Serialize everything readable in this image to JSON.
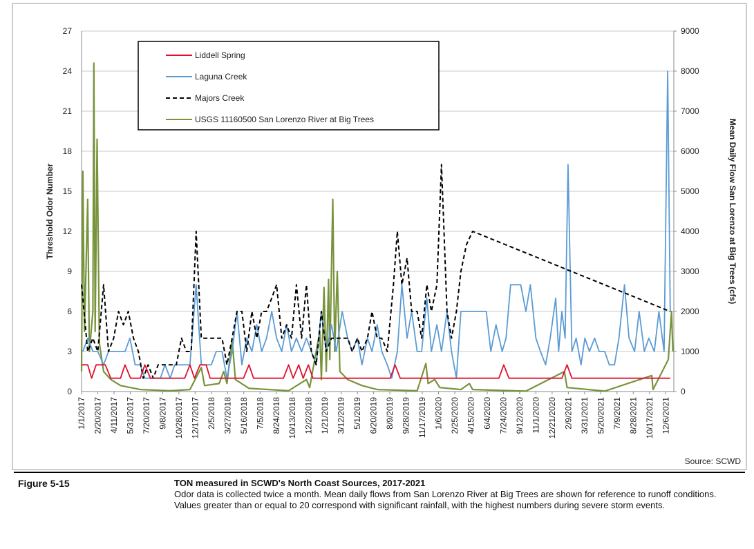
{
  "chart_data": {
    "type": "line",
    "source": "Source:  SCWD",
    "y_label": "Threshold Odor Number",
    "y2_label": "Mean Daily Flow San Lorenzo at Big Trees (cfs)",
    "xlim": [
      "2017-01-01",
      "2021-12-31"
    ],
    "xticks": [
      {
        "value": "2017-01-01",
        "label": "1/1/2017"
      },
      {
        "value": "2017-02-20",
        "label": "2/20/2017"
      },
      {
        "value": "2017-04-11",
        "label": "4/11/2017"
      },
      {
        "value": "2017-05-31",
        "label": "5/31/2017"
      },
      {
        "value": "2017-07-20",
        "label": "7/20/2017"
      },
      {
        "value": "2017-09-08",
        "label": "9/8/2017"
      },
      {
        "value": "2017-10-28",
        "label": "10/28/2017"
      },
      {
        "value": "2017-12-17",
        "label": "12/17/2017"
      },
      {
        "value": "2018-02-05",
        "label": "2/5/2018"
      },
      {
        "value": "2018-03-27",
        "label": "3/27/2018"
      },
      {
        "value": "2018-05-16",
        "label": "5/16/2018"
      },
      {
        "value": "2018-07-05",
        "label": "7/5/2018"
      },
      {
        "value": "2018-08-24",
        "label": "8/24/2018"
      },
      {
        "value": "2018-10-13",
        "label": "10/13/2018"
      },
      {
        "value": "2018-12-02",
        "label": "12/2/2018"
      },
      {
        "value": "2019-01-21",
        "label": "1/21/2019"
      },
      {
        "value": "2019-03-12",
        "label": "3/12/2019"
      },
      {
        "value": "2019-05-01",
        "label": "5/1/2019"
      },
      {
        "value": "2019-06-20",
        "label": "6/20/2019"
      },
      {
        "value": "2019-08-09",
        "label": "8/9/2019"
      },
      {
        "value": "2019-09-28",
        "label": "9/28/2019"
      },
      {
        "value": "2019-11-17",
        "label": "11/17/2019"
      },
      {
        "value": "2020-01-06",
        "label": "1/6/2020"
      },
      {
        "value": "2020-02-25",
        "label": "2/25/2020"
      },
      {
        "value": "2020-04-15",
        "label": "4/15/2020"
      },
      {
        "value": "2020-06-04",
        "label": "6/4/2020"
      },
      {
        "value": "2020-07-24",
        "label": "7/24/2020"
      },
      {
        "value": "2020-09-12",
        "label": "9/12/2020"
      },
      {
        "value": "2020-11-01",
        "label": "11/1/2020"
      },
      {
        "value": "2020-12-21",
        "label": "12/21/2020"
      },
      {
        "value": "2021-02-09",
        "label": "2/9/2021"
      },
      {
        "value": "2021-03-31",
        "label": "3/31/2021"
      },
      {
        "value": "2021-05-20",
        "label": "5/20/2021"
      },
      {
        "value": "2021-07-09",
        "label": "7/9/2021"
      },
      {
        "value": "2021-08-28",
        "label": "8/28/2021"
      },
      {
        "value": "2021-10-17",
        "label": "10/17/2021"
      },
      {
        "value": "2021-12-06",
        "label": "12/6/2021"
      }
    ],
    "ylim": [
      0,
      27
    ],
    "yticks": [
      0,
      3,
      6,
      9,
      12,
      15,
      18,
      21,
      24,
      27
    ],
    "y2lim": [
      0,
      9000
    ],
    "y2ticks": [
      0,
      1000,
      2000,
      3000,
      4000,
      5000,
      6000,
      7000,
      8000,
      9000
    ],
    "grid": true,
    "series": [
      {
        "name": "Liddell Spring",
        "color": "#e0102e",
        "x": [
          "2017-01-01",
          "2017-01-20",
          "2017-02-01",
          "2017-02-15",
          "2017-03-15",
          "2017-04-01",
          "2017-05-01",
          "2017-05-15",
          "2017-06-01",
          "2017-07-01",
          "2017-07-15",
          "2017-08-01",
          "2017-11-15",
          "2017-12-01",
          "2017-12-15",
          "2018-01-01",
          "2018-01-20",
          "2018-02-01",
          "2018-05-15",
          "2018-06-01",
          "2018-06-15",
          "2018-09-15",
          "2018-10-01",
          "2018-10-15",
          "2018-11-01",
          "2018-11-15",
          "2018-12-01",
          "2018-12-15",
          "2019-08-10",
          "2019-08-25",
          "2019-09-10",
          "2020-07-10",
          "2020-07-25",
          "2020-08-10",
          "2021-01-20",
          "2021-02-05",
          "2021-02-20",
          "2021-12-20"
        ],
        "values": [
          2,
          2,
          1,
          2,
          2,
          1,
          1,
          2,
          1,
          1,
          2,
          1,
          1,
          2,
          1,
          2,
          2,
          1,
          1,
          2,
          1,
          1,
          2,
          1,
          2,
          1,
          2,
          1,
          1,
          2,
          1,
          1,
          2,
          1,
          1,
          2,
          1,
          1
        ]
      },
      {
        "name": "Laguna Creek",
        "color": "#5b9bd5",
        "x": [
          "2017-01-05",
          "2017-01-20",
          "2017-02-05",
          "2017-02-20",
          "2017-03-10",
          "2017-03-25",
          "2017-04-10",
          "2017-04-25",
          "2017-05-15",
          "2017-05-30",
          "2017-06-15",
          "2017-07-01",
          "2017-07-15",
          "2017-08-01",
          "2017-08-15",
          "2017-09-01",
          "2017-09-15",
          "2017-10-01",
          "2017-10-15",
          "2017-11-01",
          "2017-11-15",
          "2017-12-01",
          "2017-12-20",
          "2018-01-05",
          "2018-01-20",
          "2018-02-05",
          "2018-02-20",
          "2018-03-10",
          "2018-03-25",
          "2018-04-10",
          "2018-04-25",
          "2018-05-10",
          "2018-05-25",
          "2018-06-10",
          "2018-06-25",
          "2018-07-10",
          "2018-07-25",
          "2018-08-10",
          "2018-08-25",
          "2018-09-10",
          "2018-09-25",
          "2018-10-10",
          "2018-10-25",
          "2018-11-10",
          "2018-11-25",
          "2018-12-10",
          "2018-12-25",
          "2019-01-10",
          "2019-01-25",
          "2019-02-10",
          "2019-02-25",
          "2019-03-15",
          "2019-04-01",
          "2019-04-15",
          "2019-05-01",
          "2019-05-15",
          "2019-06-01",
          "2019-06-15",
          "2019-07-01",
          "2019-07-15",
          "2019-08-01",
          "2019-08-15",
          "2019-09-01",
          "2019-09-15",
          "2019-10-01",
          "2019-10-15",
          "2019-11-01",
          "2019-11-15",
          "2019-12-01",
          "2019-12-15",
          "2020-01-01",
          "2020-01-15",
          "2020-02-01",
          "2020-02-15",
          "2020-03-01",
          "2020-03-15",
          "2020-04-01",
          "2020-05-01",
          "2020-06-01",
          "2020-06-15",
          "2020-07-01",
          "2020-07-20",
          "2020-08-01",
          "2020-08-15",
          "2020-09-01",
          "2020-09-15",
          "2020-10-01",
          "2020-10-15",
          "2020-11-01",
          "2020-11-15",
          "2020-12-01",
          "2020-12-15",
          "2021-01-01",
          "2021-01-10",
          "2021-01-20",
          "2021-01-30",
          "2021-02-08",
          "2021-02-20",
          "2021-03-05",
          "2021-03-20",
          "2021-04-01",
          "2021-04-15",
          "2021-05-01",
          "2021-05-15",
          "2021-06-01",
          "2021-06-15",
          "2021-07-01",
          "2021-07-15",
          "2021-08-01",
          "2021-08-15",
          "2021-09-01",
          "2021-09-15",
          "2021-10-01",
          "2021-10-15",
          "2021-11-01",
          "2021-11-15",
          "2021-12-01",
          "2021-12-12",
          "2021-12-20"
        ],
        "values": [
          3,
          4,
          3,
          3,
          2,
          3,
          3,
          3,
          3,
          4,
          2,
          2,
          1,
          1,
          1,
          1,
          2,
          1,
          2,
          2,
          2,
          2,
          8,
          2,
          2,
          2,
          3,
          3,
          1,
          3,
          6,
          2,
          4,
          3,
          5,
          3,
          4,
          6,
          4,
          3,
          5,
          3,
          4,
          3,
          4,
          3,
          2,
          6,
          3,
          5,
          3,
          6,
          4,
          3,
          4,
          2,
          4,
          3,
          5,
          3,
          2,
          1,
          3,
          8,
          4,
          6,
          3,
          3,
          7,
          3,
          5,
          3,
          6,
          3,
          1,
          6,
          6,
          6,
          6,
          3,
          5,
          3,
          4,
          8,
          8,
          8,
          6,
          8,
          4,
          3,
          2,
          4,
          7,
          3,
          6,
          4,
          17,
          3,
          4,
          2,
          4,
          3,
          4,
          3,
          3,
          2,
          2,
          4,
          8,
          4,
          3,
          6,
          3,
          4,
          3,
          6,
          3,
          24,
          6
        ]
      },
      {
        "name": "Majors Creek",
        "color": "#000000",
        "dashed": true,
        "x": [
          "2017-01-01",
          "2017-01-20",
          "2017-02-05",
          "2017-02-20",
          "2017-03-10",
          "2017-03-25",
          "2017-04-10",
          "2017-04-25",
          "2017-05-10",
          "2017-05-25",
          "2017-06-10",
          "2017-06-25",
          "2017-07-10",
          "2017-07-25",
          "2017-08-10",
          "2017-08-25",
          "2017-09-10",
          "2017-10-01",
          "2017-10-20",
          "2017-11-05",
          "2017-11-20",
          "2017-12-05",
          "2017-12-20",
          "2018-01-05",
          "2018-01-20",
          "2018-02-05",
          "2018-02-20",
          "2018-03-10",
          "2018-03-25",
          "2018-04-10",
          "2018-04-25",
          "2018-05-10",
          "2018-05-25",
          "2018-06-10",
          "2018-06-25",
          "2018-07-10",
          "2018-07-25",
          "2018-08-10",
          "2018-08-25",
          "2018-09-10",
          "2018-09-25",
          "2018-10-10",
          "2018-10-25",
          "2018-11-10",
          "2018-11-25",
          "2018-12-10",
          "2018-12-25",
          "2019-01-10",
          "2019-01-25",
          "2019-02-10",
          "2019-02-25",
          "2019-03-15",
          "2019-04-01",
          "2019-04-15",
          "2019-05-01",
          "2019-05-15",
          "2019-06-01",
          "2019-06-15",
          "2019-07-01",
          "2019-07-15",
          "2019-08-01",
          "2019-08-20",
          "2019-09-01",
          "2019-09-15",
          "2019-10-01",
          "2019-10-15",
          "2019-11-01",
          "2019-11-15",
          "2019-12-01",
          "2019-12-15",
          "2020-01-01",
          "2020-01-15",
          "2020-02-01",
          "2020-02-15",
          "2020-03-01",
          "2020-03-15",
          "2020-04-01",
          "2020-04-20",
          "2021-12-20"
        ],
        "values": [
          8,
          3,
          4,
          3,
          8,
          3,
          4,
          6,
          5,
          6,
          4,
          3,
          1,
          2,
          1,
          2,
          2,
          2,
          2,
          4,
          3,
          3,
          12,
          4,
          4,
          4,
          4,
          4,
          2,
          4,
          6,
          6,
          3,
          6,
          4,
          6,
          6,
          7,
          8,
          4,
          5,
          4,
          8,
          4,
          8,
          3,
          2,
          6,
          3,
          4,
          4,
          4,
          4,
          3,
          4,
          3,
          4,
          6,
          4,
          4,
          3,
          8,
          12,
          8,
          10,
          6,
          6,
          4,
          8,
          6,
          8,
          17,
          6,
          4,
          6,
          9,
          11,
          12,
          6
        ]
      },
      {
        "name": "USGS 11160500 San Lorenzo River at Big Trees",
        "color": "#77933c",
        "axis": "y2",
        "x": [
          "2017-01-01",
          "2017-01-05",
          "2017-01-10",
          "2017-01-20",
          "2017-01-25",
          "2017-02-05",
          "2017-02-08",
          "2017-02-12",
          "2017-02-18",
          "2017-02-25",
          "2017-03-10",
          "2017-04-01",
          "2017-05-01",
          "2017-07-01",
          "2017-10-01",
          "2017-12-01",
          "2018-01-05",
          "2018-01-15",
          "2018-03-01",
          "2018-03-15",
          "2018-03-25",
          "2018-04-10",
          "2018-04-20",
          "2018-06-01",
          "2018-10-01",
          "2018-11-25",
          "2018-12-05",
          "2019-01-05",
          "2019-01-10",
          "2019-01-18",
          "2019-01-25",
          "2019-02-01",
          "2019-02-05",
          "2019-02-14",
          "2019-02-20",
          "2019-02-28",
          "2019-03-08",
          "2019-04-01",
          "2019-05-15",
          "2019-07-01",
          "2019-11-01",
          "2019-11-28",
          "2019-12-05",
          "2019-12-25",
          "2020-01-10",
          "2020-03-15",
          "2020-04-10",
          "2020-04-20",
          "2020-10-01",
          "2021-01-28",
          "2021-02-05",
          "2021-06-01",
          "2021-10-24",
          "2021-10-28",
          "2021-12-14",
          "2021-12-24",
          "2021-12-28"
        ],
        "values": [
          500,
          5500,
          1500,
          4800,
          1000,
          2000,
          8200,
          1500,
          6300,
          1200,
          500,
          300,
          150,
          50,
          20,
          50,
          600,
          150,
          200,
          500,
          200,
          1300,
          300,
          80,
          20,
          300,
          100,
          1500,
          300,
          2600,
          500,
          2800,
          800,
          4800,
          1000,
          3000,
          500,
          300,
          150,
          50,
          20,
          700,
          200,
          300,
          100,
          50,
          200,
          50,
          10,
          500,
          100,
          10,
          400,
          50,
          800,
          2000,
          1000
        ]
      }
    ]
  },
  "caption": {
    "figure": "Figure 5-15",
    "title": "TON measured in SCWD's North Coast Sources, 2017-2021",
    "text": "Odor data is collected twice a month. Mean daily flows from San Lorenzo River at Big Trees are shown for reference to runoff conditions. Values greater than or equal to 20 correspond with significant rainfall, with the highest numbers during severe storm events."
  }
}
